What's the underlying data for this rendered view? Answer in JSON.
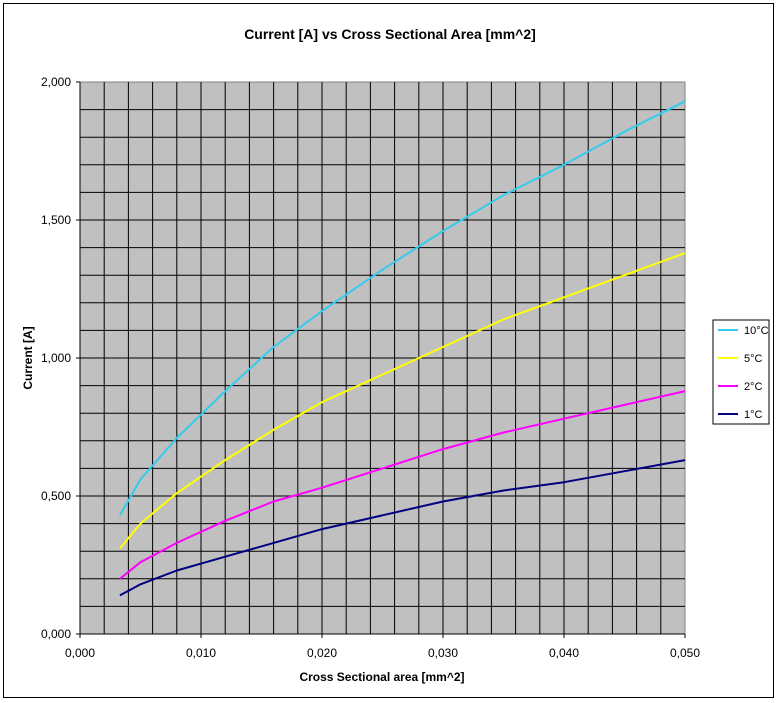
{
  "chart_data": {
    "type": "line",
    "title": "Current [A] vs Cross Sectional Area [mm^2]",
    "xlabel": "Cross Sectional area [mm^2]",
    "ylabel": "Current [A]",
    "xlim": [
      0,
      0.05
    ],
    "ylim": [
      0,
      2
    ],
    "x_ticks": [
      "0,000",
      "0,010",
      "0,020",
      "0,030",
      "0,040",
      "0,050"
    ],
    "y_ticks": [
      "0,000",
      "0,500",
      "1,000",
      "1,500",
      "2,000"
    ],
    "grid": true,
    "legend_position": "right",
    "x": [
      0.0033,
      0.005,
      0.008,
      0.012,
      0.016,
      0.02,
      0.025,
      0.03,
      0.035,
      0.04,
      0.045,
      0.05
    ],
    "series": [
      {
        "name": "10°C",
        "color": "#33ccee",
        "values": [
          0.43,
          0.56,
          0.71,
          0.88,
          1.04,
          1.17,
          1.32,
          1.46,
          1.59,
          1.7,
          1.82,
          1.93
        ]
      },
      {
        "name": "5°C",
        "color": "#ffff00",
        "values": [
          0.31,
          0.4,
          0.51,
          0.63,
          0.74,
          0.84,
          0.94,
          1.04,
          1.14,
          1.22,
          1.3,
          1.38
        ]
      },
      {
        "name": "2°C",
        "color": "#ff00ff",
        "values": [
          0.2,
          0.26,
          0.33,
          0.41,
          0.48,
          0.53,
          0.6,
          0.67,
          0.73,
          0.78,
          0.83,
          0.88
        ]
      },
      {
        "name": "1°C",
        "color": "#000080",
        "values": [
          0.14,
          0.18,
          0.23,
          0.28,
          0.33,
          0.38,
          0.43,
          0.48,
          0.52,
          0.55,
          0.59,
          0.63
        ]
      }
    ]
  }
}
